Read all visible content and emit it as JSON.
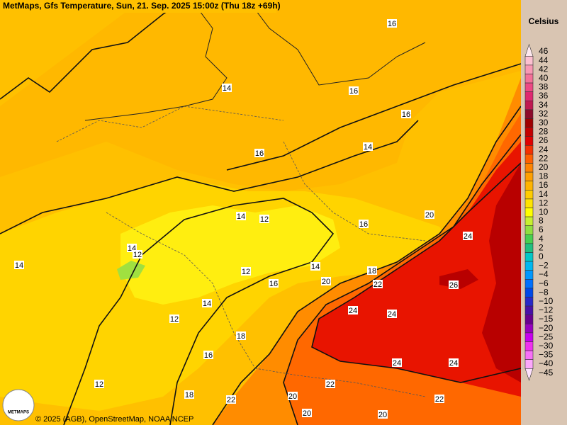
{
  "header": {
    "title": "MetMaps, Gfs Temperature, Sun, 21. Sep. 2025 15:00z (Thu 18z +69h)"
  },
  "legend": {
    "unit": "Celsius",
    "items": [
      {
        "label": "46",
        "color": "#fde8ee"
      },
      {
        "label": "44",
        "color": "#fcc0d0"
      },
      {
        "label": "42",
        "color": "#f898b4"
      },
      {
        "label": "40",
        "color": "#f47098"
      },
      {
        "label": "38",
        "color": "#ee4884"
      },
      {
        "label": "36",
        "color": "#e02870"
      },
      {
        "label": "34",
        "color": "#c01850"
      },
      {
        "label": "32",
        "color": "#8e0a2a"
      },
      {
        "label": "30",
        "color": "#a00000"
      },
      {
        "label": "28",
        "color": "#c40000"
      },
      {
        "label": "26",
        "color": "#e00000"
      },
      {
        "label": "24",
        "color": "#f53000"
      },
      {
        "label": "22",
        "color": "#ff6000"
      },
      {
        "label": "20",
        "color": "#ff8400"
      },
      {
        "label": "18",
        "color": "#ffa000"
      },
      {
        "label": "16",
        "color": "#ffb400"
      },
      {
        "label": "14",
        "color": "#ffcc00"
      },
      {
        "label": "12",
        "color": "#ffe400"
      },
      {
        "label": "10",
        "color": "#ffff00"
      },
      {
        "label": "8",
        "color": "#c8f030"
      },
      {
        "label": "6",
        "color": "#90e040"
      },
      {
        "label": "4",
        "color": "#48d050"
      },
      {
        "label": "2",
        "color": "#20c080"
      },
      {
        "label": "0",
        "color": "#00c8c8"
      },
      {
        "label": "−2",
        "color": "#00b8f0"
      },
      {
        "label": "−4",
        "color": "#0098ff"
      },
      {
        "label": "−6",
        "color": "#0070ff"
      },
      {
        "label": "−8",
        "color": "#0048e8"
      },
      {
        "label": "−10",
        "color": "#2828c8"
      },
      {
        "label": "−12",
        "color": "#4810a8"
      },
      {
        "label": "−15",
        "color": "#680090"
      },
      {
        "label": "−20",
        "color": "#9800c0"
      },
      {
        "label": "−25",
        "color": "#c800f0"
      },
      {
        "label": "−30",
        "color": "#f030f0"
      },
      {
        "label": "−35",
        "color": "#f870f8"
      },
      {
        "label": "−40",
        "color": "#fca8fc"
      },
      {
        "label": "−45",
        "color": "#fde0fd"
      }
    ]
  },
  "contour_labels": [
    "16",
    "14",
    "16",
    "16",
    "16",
    "14",
    "14",
    "12",
    "16",
    "20",
    "14",
    "12",
    "24",
    "14",
    "12",
    "14",
    "18",
    "16",
    "20",
    "22",
    "26",
    "14",
    "24",
    "24",
    "12",
    "18",
    "16",
    "24",
    "24",
    "12",
    "18",
    "22",
    "22",
    "20",
    "22",
    "20",
    "20"
  ],
  "footer": {
    "copyright": "© 2025 (AGB), OpenStreetMap, NOAA NCEP",
    "logo": "METMAPS"
  }
}
